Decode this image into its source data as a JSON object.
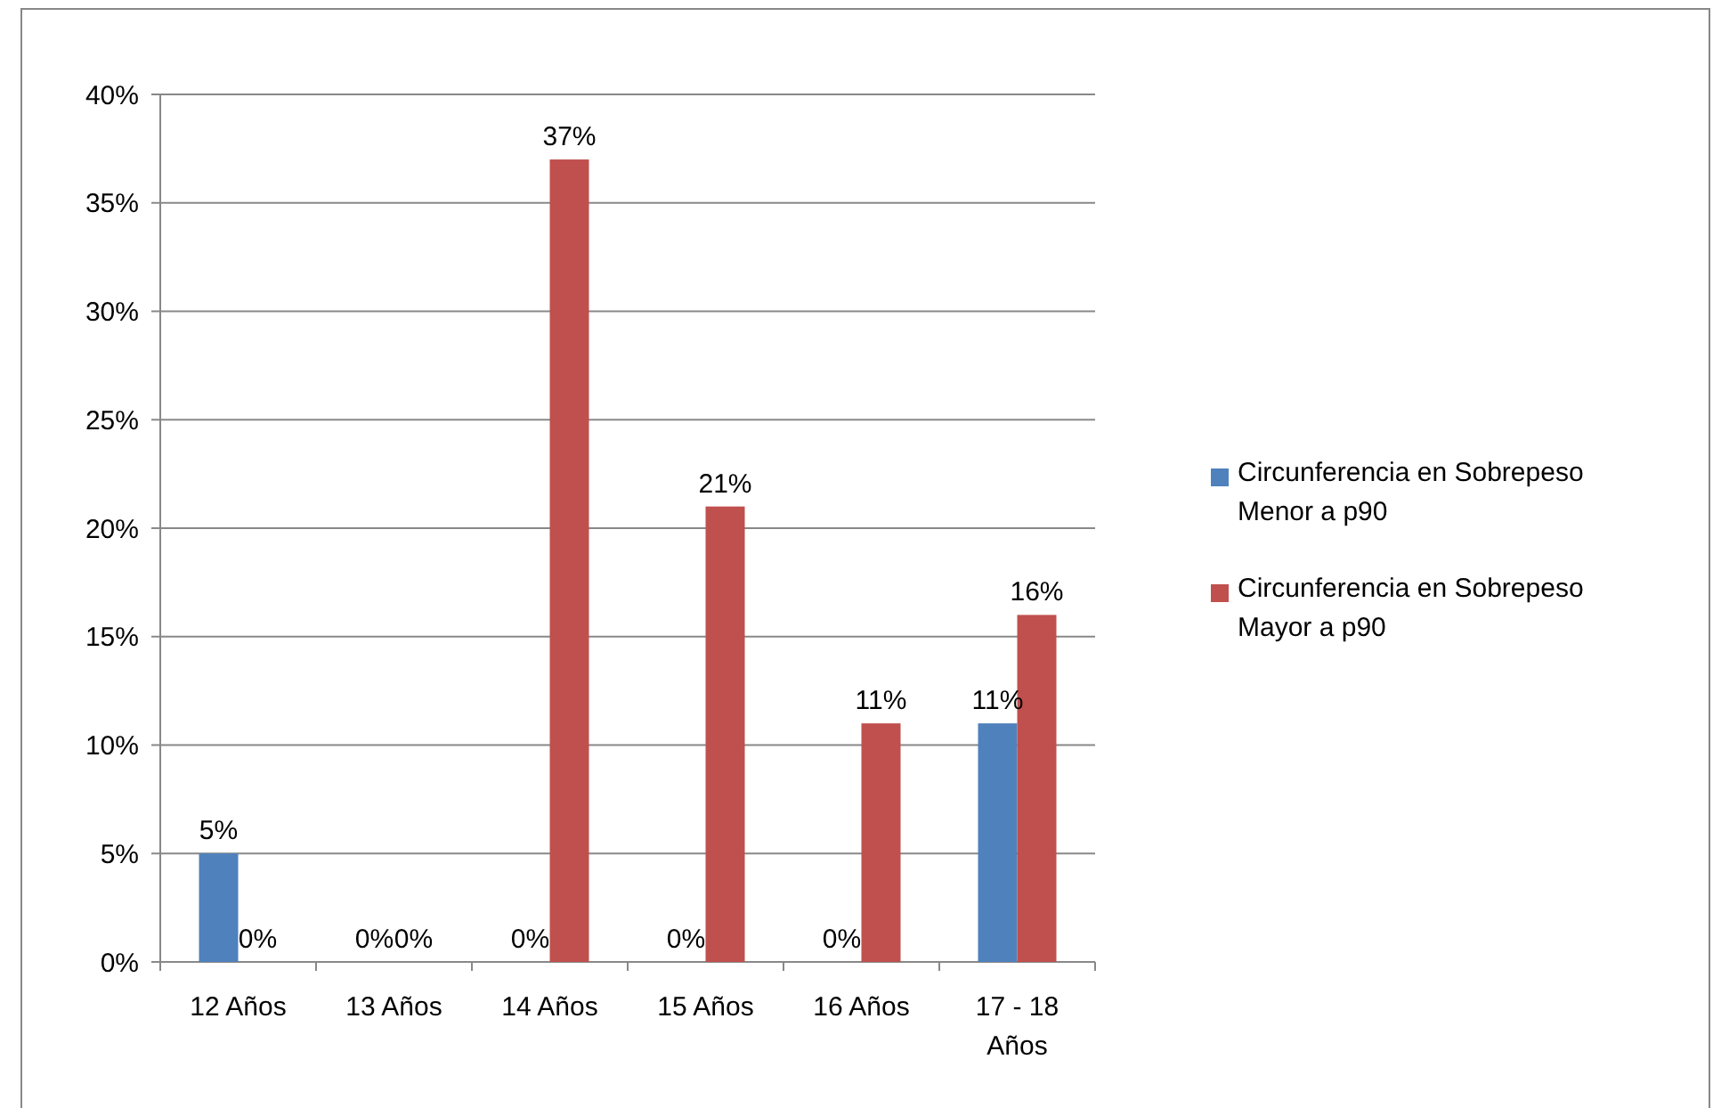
{
  "chart_data": {
    "type": "bar",
    "categories": [
      "12 Años",
      "13 Años",
      "14 Años",
      "15 Años",
      "16 Años",
      "17 - 18 Años"
    ],
    "series": [
      {
        "name": "Circunferencia en Sobrepeso Menor a p90",
        "color": "#4f81bd",
        "values": [
          5,
          0,
          0,
          0,
          0,
          11
        ],
        "value_labels": [
          "5%",
          "0%",
          "0%",
          "0%",
          "0%",
          "11%"
        ]
      },
      {
        "name": "Circunferencia en Sobrepeso Mayor a p90",
        "color": "#c0504d",
        "values": [
          0,
          0,
          37,
          21,
          11,
          16
        ],
        "value_labels": [
          "0%",
          "0%",
          "37%",
          "21%",
          "11%",
          "16%"
        ]
      }
    ],
    "ylim": [
      0,
      40
    ],
    "yticks": [
      {
        "value": 0,
        "label": "0%"
      },
      {
        "value": 5,
        "label": "5%"
      },
      {
        "value": 10,
        "label": "10%"
      },
      {
        "value": 15,
        "label": "15%"
      },
      {
        "value": 20,
        "label": "20%"
      },
      {
        "value": 25,
        "label": "25%"
      },
      {
        "value": 30,
        "label": "30%"
      },
      {
        "value": 35,
        "label": "35%"
      },
      {
        "value": 40,
        "label": "40%"
      }
    ],
    "grid": "y",
    "legend": "right"
  }
}
